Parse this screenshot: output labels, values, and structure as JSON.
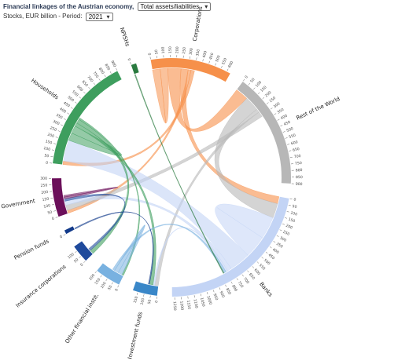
{
  "header": {
    "title": "Financial linkages of the Austrian economy,",
    "view_select": "Total assets/liabilities",
    "subtitle": "Stocks, EUR billion - Period:",
    "period_select": "2021"
  },
  "chart_data": {
    "type": "chord",
    "unit": "EUR billion",
    "period": "2021",
    "sectors": [
      {
        "name": "Corporations",
        "color": "#f6904a",
        "total": 630
      },
      {
        "name": "Rest of the World",
        "color": "#b7b7b7",
        "total": 900
      },
      {
        "name": "Banks",
        "color": "#c3d4f5",
        "total": 1270
      },
      {
        "name": "Investment funds",
        "color": "#3a87c8",
        "total": 190
      },
      {
        "name": "Other financial instit.",
        "color": "#78b1e0",
        "total": 200
      },
      {
        "name": "Insurance corporations",
        "color": "#1f4a9c",
        "total": 140
      },
      {
        "name": "Pension funds",
        "color": "#123a8a",
        "total": 30
      },
      {
        "name": "Government",
        "color": "#6b0f5a",
        "total": 300
      },
      {
        "name": "Households",
        "color": "#3e9e5e",
        "total": 900
      },
      {
        "name": "NPISHs",
        "color": "#2a7a3f",
        "total": 40
      }
    ],
    "flows": [
      {
        "from": "Corporations",
        "to": "Corporations",
        "value": 130
      },
      {
        "from": "Corporations",
        "to": "Rest of the World",
        "value": 220
      },
      {
        "from": "Corporations",
        "to": "Banks",
        "value": 120
      },
      {
        "from": "Corporations",
        "to": "Government",
        "value": 50
      },
      {
        "from": "Corporations",
        "to": "Households",
        "value": 60
      },
      {
        "from": "Rest of the World",
        "to": "Banks",
        "value": 250
      },
      {
        "from": "Rest of the World",
        "to": "Investment funds",
        "value": 60
      },
      {
        "from": "Rest of the World",
        "to": "Government",
        "value": 90
      },
      {
        "from": "Banks",
        "to": "Banks",
        "value": 380
      },
      {
        "from": "Banks",
        "to": "Households",
        "value": 360
      },
      {
        "from": "Banks",
        "to": "Government",
        "value": 70
      },
      {
        "from": "Banks",
        "to": "Investment funds",
        "value": 30
      },
      {
        "from": "Households",
        "to": "Households",
        "value": 130
      },
      {
        "from": "Households",
        "to": "Investment funds",
        "value": 60
      },
      {
        "from": "Households",
        "to": "Insurance corporations",
        "value": 70
      },
      {
        "from": "Households",
        "to": "Other financial instit.",
        "value": 30
      },
      {
        "from": "Other financial instit.",
        "to": "Other financial instit.",
        "value": 70
      },
      {
        "from": "Other financial instit.",
        "to": "Banks",
        "value": 40
      },
      {
        "from": "Insurance corporations",
        "to": "Government",
        "value": 40
      },
      {
        "from": "Pension funds",
        "to": "Investment funds",
        "value": 20
      },
      {
        "from": "NPISHs",
        "to": "Banks",
        "value": 15
      },
      {
        "from": "Government",
        "to": "Government",
        "value": 30
      }
    ]
  }
}
